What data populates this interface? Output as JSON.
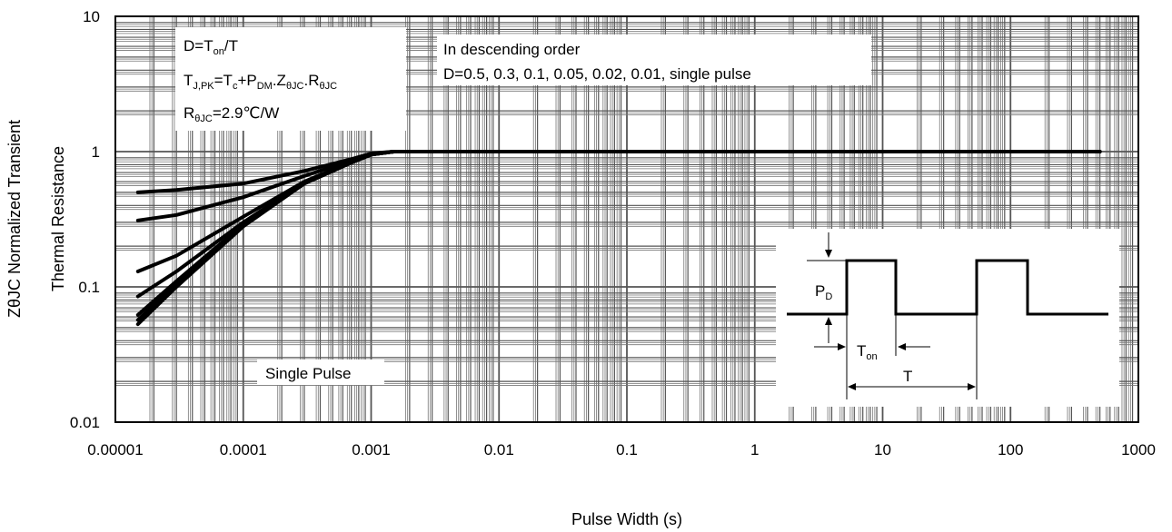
{
  "chart_data": {
    "type": "line",
    "x_scale": "log",
    "y_scale": "log",
    "xlim": [
      1e-05,
      1000
    ],
    "ylim": [
      0.01,
      10
    ],
    "grid": true,
    "xlabel": "Pulse Width (s)",
    "ylabel_line1": "ZθJC Normalized Transient",
    "ylabel_line2": "Thermal Resistance",
    "x_ticks": [
      "0.00001",
      "0.0001",
      "0.001",
      "0.01",
      "0.1",
      "1",
      "10",
      "100",
      "1000"
    ],
    "y_ticks": [
      "0.01",
      "0.1",
      "1",
      "10"
    ],
    "series": [
      {
        "name": "D=0.5",
        "x": [
          1.5e-05,
          3e-05,
          0.0001,
          0.0003,
          0.0007,
          0.001,
          0.0015,
          0.002,
          0.01,
          0.1,
          1,
          10,
          100,
          500
        ],
        "y": [
          0.5,
          0.52,
          0.58,
          0.72,
          0.88,
          0.97,
          1.0,
          1.0,
          1.0,
          1.0,
          1.0,
          1.0,
          1.0,
          1.0
        ]
      },
      {
        "name": "D=0.3",
        "x": [
          1.5e-05,
          3e-05,
          0.0001,
          0.0003,
          0.0007,
          0.001,
          0.0015,
          0.002,
          0.01,
          0.1,
          1,
          10,
          100,
          500
        ],
        "y": [
          0.31,
          0.34,
          0.46,
          0.66,
          0.86,
          0.96,
          1.0,
          1.0,
          1.0,
          1.0,
          1.0,
          1.0,
          1.0,
          1.0
        ]
      },
      {
        "name": "D=0.1",
        "x": [
          1.5e-05,
          3e-05,
          0.0001,
          0.0003,
          0.0007,
          0.001,
          0.0015,
          0.002,
          0.01,
          0.1,
          1,
          10,
          100,
          500
        ],
        "y": [
          0.13,
          0.17,
          0.33,
          0.6,
          0.84,
          0.95,
          1.0,
          1.0,
          1.0,
          1.0,
          1.0,
          1.0,
          1.0,
          1.0
        ]
      },
      {
        "name": "D=0.05",
        "x": [
          1.5e-05,
          3e-05,
          0.0001,
          0.0003,
          0.0007,
          0.001,
          0.0015,
          0.002,
          0.01,
          0.1,
          1,
          10,
          100,
          500
        ],
        "y": [
          0.085,
          0.13,
          0.3,
          0.59,
          0.83,
          0.95,
          1.0,
          1.0,
          1.0,
          1.0,
          1.0,
          1.0,
          1.0,
          1.0
        ]
      },
      {
        "name": "D=0.02",
        "x": [
          1.5e-05,
          3e-05,
          0.0001,
          0.0003,
          0.0007,
          0.001,
          0.0015,
          0.002,
          0.01,
          0.1,
          1,
          10,
          100,
          500
        ],
        "y": [
          0.062,
          0.11,
          0.29,
          0.58,
          0.83,
          0.95,
          1.0,
          1.0,
          1.0,
          1.0,
          1.0,
          1.0,
          1.0,
          1.0
        ]
      },
      {
        "name": "D=0.01",
        "x": [
          1.5e-05,
          3e-05,
          0.0001,
          0.0003,
          0.0007,
          0.001,
          0.0015,
          0.002,
          0.01,
          0.1,
          1,
          10,
          100,
          500
        ],
        "y": [
          0.057,
          0.105,
          0.285,
          0.58,
          0.83,
          0.95,
          1.0,
          1.0,
          1.0,
          1.0,
          1.0,
          1.0,
          1.0,
          1.0
        ]
      },
      {
        "name": "Single Pulse",
        "x": [
          1.5e-05,
          3e-05,
          0.0001,
          0.0003,
          0.0007,
          0.001,
          0.0015,
          0.002,
          0.01,
          0.1,
          1,
          10,
          100,
          500
        ],
        "y": [
          0.053,
          0.1,
          0.28,
          0.58,
          0.83,
          0.95,
          1.0,
          1.0,
          1.0,
          1.0,
          1.0,
          1.0,
          1.0,
          1.0
        ]
      }
    ],
    "annotations": {
      "formula_box": {
        "line1": "D=T",
        "line1_sub": "on",
        "line1_tail": "/T",
        "line2_a": "T",
        "line2_a_sub": "J,PK",
        "line2_b": "=T",
        "line2_b_sub": "c",
        "line2_c": "+P",
        "line2_c_sub": "DM",
        "line2_d": ".Z",
        "line2_d_sub": "θJC",
        "line2_e": ".R",
        "line2_e_sub": "θJC",
        "line3_a": "R",
        "line3_a_sub": "θJC",
        "line3_b": "=2.9℃/W"
      },
      "order_box": {
        "line1": "In descending order",
        "line2": "D=0.5, 0.3, 0.1, 0.05, 0.02, 0.01, single pulse"
      },
      "single_pulse_label": "Single Pulse",
      "inset": {
        "p_label": "P",
        "p_sub": "D",
        "ton_label": "T",
        "ton_sub": "on",
        "t_label": "T"
      }
    }
  }
}
